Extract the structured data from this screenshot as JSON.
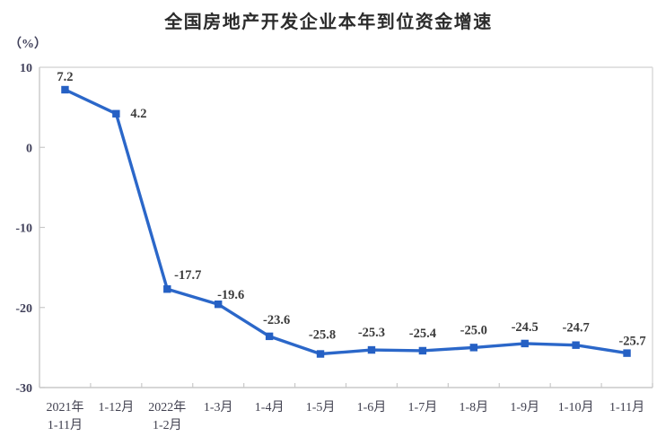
{
  "chart_data": {
    "type": "line",
    "title": "全国房地产开发企业本年到位资金增速",
    "unit_label": "（%）",
    "categories": [
      "2021年\n1-11月",
      "1-12月",
      "2022年\n1-2月",
      "1-3月",
      "1-4月",
      "1-5月",
      "1-6月",
      "1-7月",
      "1-8月",
      "1-9月",
      "1-10月",
      "1-11月"
    ],
    "values": [
      7.2,
      4.2,
      -17.7,
      -19.6,
      -23.6,
      -25.8,
      -25.3,
      -25.4,
      -25.0,
      -24.5,
      -24.7,
      -25.7
    ],
    "data_labels": [
      "7.2",
      "4.2",
      "-17.7",
      "-19.6",
      "-23.6",
      "-25.8",
      "-25.3",
      "-25.4",
      "-25.0",
      "-24.5",
      "-24.7",
      "-25.7"
    ],
    "ylim": [
      -30,
      10
    ],
    "yticks": [
      10,
      0,
      -10,
      -20,
      -30
    ],
    "xlabel": "",
    "ylabel": "（%）",
    "grid": false,
    "legend": "none",
    "colors": {
      "line": "#2b67c9",
      "marker": "#2560c4",
      "label_text": "#3a3a3a",
      "tick_text": "#40405a",
      "axis": "#c9c9c9",
      "border": "#d9d9d9",
      "background": "#ffffff"
    }
  }
}
